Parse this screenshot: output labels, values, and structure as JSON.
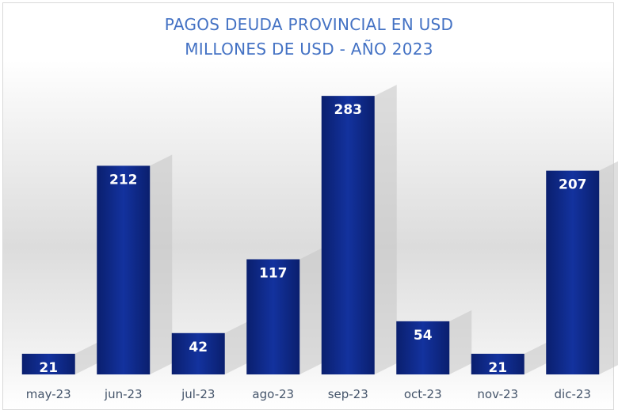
{
  "colors": {
    "bar": "#0f2b8f",
    "bar_dark": "#0a1f6e",
    "title": "#4472c4",
    "tick": "#44546a",
    "data_label": "#ffffff"
  },
  "chart_data": {
    "type": "bar",
    "title": "PAGOS DEUDA PROVINCIAL EN USD",
    "subtitle": "MILLONES DE USD  - AÑO 2023",
    "categories": [
      "may-23",
      "jun-23",
      "jul-23",
      "ago-23",
      "sep-23",
      "oct-23",
      "nov-23",
      "dic-23"
    ],
    "series": [
      {
        "values": [
          21,
          212,
          42,
          117,
          283,
          54,
          21,
          207
        ]
      }
    ],
    "data_labels": true,
    "ylim": [
      0,
      300
    ],
    "grid": false,
    "legend": "none"
  }
}
